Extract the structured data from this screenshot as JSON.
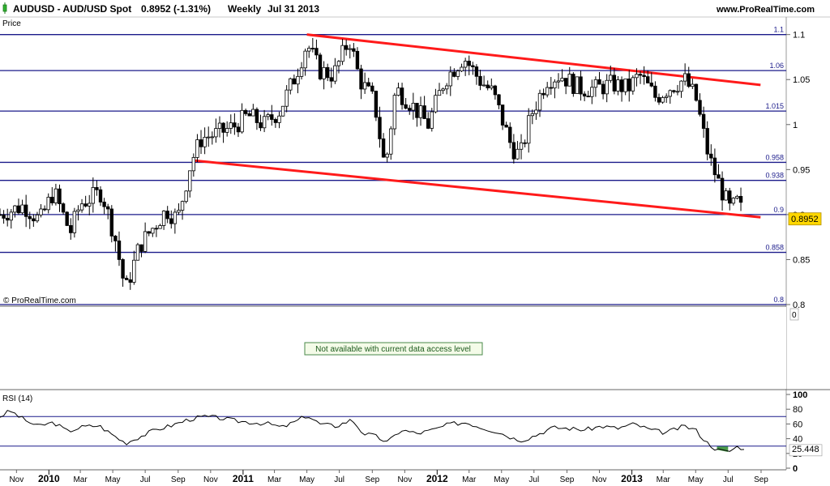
{
  "header": {
    "symbol": "AUDUSD - AUD/USD Spot",
    "quote": "0.8952 (-1.31%)",
    "period": "Weekly",
    "date": "Jul 31 2013",
    "site": "www.ProRealTime.com",
    "price_label": "Price",
    "watermark": "© ProRealTime.com"
  },
  "middle_panel": {
    "notice": "Not available with current data access level",
    "scale_value": "0"
  },
  "rsi_panel": {
    "label": "RSI (14)",
    "last_value_label": "25.448"
  },
  "current_price_label": "0.8952",
  "colors": {
    "level_line": "#1a1a8a",
    "trendline": "#ff1a1a",
    "candle": "#000000",
    "price_tag": "#ffd700",
    "rsi_overbought_fill": "#d98080",
    "rsi_oversold_fill": "#4a9a4a",
    "notice_border": "#4a8a4a",
    "notice_bg": "#f4fbe8"
  },
  "chart_data": {
    "type": "candlestick",
    "title": "AUDUSD - AUD/USD Spot",
    "timeframe": "Weekly",
    "ylim": [
      0.8,
      1.115
    ],
    "ticks": [
      {
        "label": "1.1",
        "value": 1.1
      },
      {
        "label": "1.05",
        "value": 1.05
      },
      {
        "label": "1",
        "value": 1.0
      },
      {
        "label": "0.95",
        "value": 0.95
      },
      {
        "label": "0.9",
        "value": 0.9
      },
      {
        "label": "0.85",
        "value": 0.85
      },
      {
        "label": "0.8",
        "value": 0.8
      }
    ],
    "levels": [
      {
        "label": "1.1",
        "value": 1.1
      },
      {
        "label": "1.06",
        "value": 1.06
      },
      {
        "label": "1.015",
        "value": 1.015
      },
      {
        "label": "0.958",
        "value": 0.958
      },
      {
        "label": "0.938",
        "value": 0.938
      },
      {
        "label": "0.9",
        "value": 0.9
      },
      {
        "label": "0.858",
        "value": 0.858
      },
      {
        "label": "0.8",
        "value": 0.8
      }
    ],
    "trendlines": [
      {
        "from": [
          "2011-05-01",
          1.1
        ],
        "to": [
          "2013-08-31",
          1.044
        ]
      },
      {
        "from": [
          "2010-10-01",
          0.96
        ],
        "to": [
          "2013-08-31",
          0.897
        ]
      }
    ],
    "current_price": 0.8952,
    "x_axis": {
      "start": "2009-10-01",
      "end": "2013-09-30",
      "months": [
        {
          "label": "Nov",
          "date": "2009-11-01"
        },
        {
          "label": "Mar",
          "date": "2010-03-01"
        },
        {
          "label": "May",
          "date": "2010-05-01"
        },
        {
          "label": "Jul",
          "date": "2010-07-01"
        },
        {
          "label": "Sep",
          "date": "2010-09-01"
        },
        {
          "label": "Nov",
          "date": "2010-11-01"
        },
        {
          "label": "Mar",
          "date": "2011-03-01"
        },
        {
          "label": "May",
          "date": "2011-05-01"
        },
        {
          "label": "Jul",
          "date": "2011-07-01"
        },
        {
          "label": "Sep",
          "date": "2011-09-01"
        },
        {
          "label": "Nov",
          "date": "2011-11-01"
        },
        {
          "label": "Mar",
          "date": "2012-03-01"
        },
        {
          "label": "May",
          "date": "2012-05-01"
        },
        {
          "label": "Jul",
          "date": "2012-07-01"
        },
        {
          "label": "Sep",
          "date": "2012-09-01"
        },
        {
          "label": "Nov",
          "date": "2012-11-01"
        },
        {
          "label": "Mar",
          "date": "2013-03-01"
        },
        {
          "label": "May",
          "date": "2013-05-01"
        },
        {
          "label": "Jul",
          "date": "2013-07-01"
        },
        {
          "label": "Sep",
          "date": "2013-09-01"
        }
      ],
      "years": [
        {
          "label": "2010",
          "date": "2010-01-01"
        },
        {
          "label": "2011",
          "date": "2011-01-01"
        },
        {
          "label": "2012",
          "date": "2012-01-01"
        },
        {
          "label": "2013",
          "date": "2013-01-01"
        }
      ]
    },
    "close_path": [
      [
        "2009-10-01",
        0.9
      ],
      [
        "2009-11-15",
        0.91
      ],
      [
        "2009-12-15",
        0.893
      ],
      [
        "2010-01-10",
        0.926
      ],
      [
        "2010-02-10",
        0.88
      ],
      [
        "2010-03-01",
        0.912
      ],
      [
        "2010-04-10",
        0.925
      ],
      [
        "2010-05-05",
        0.875
      ],
      [
        "2010-05-25",
        0.815
      ],
      [
        "2010-06-20",
        0.865
      ],
      [
        "2010-07-15",
        0.885
      ],
      [
        "2010-08-10",
        0.905
      ],
      [
        "2010-08-31",
        0.895
      ],
      [
        "2010-09-25",
        0.958
      ],
      [
        "2010-10-15",
        0.985
      ],
      [
        "2010-11-15",
        0.99
      ],
      [
        "2010-12-15",
        0.998
      ],
      [
        "2011-01-10",
        1.01
      ],
      [
        "2011-02-10",
        1.0
      ],
      [
        "2011-03-10",
        1.015
      ],
      [
        "2011-04-10",
        1.055
      ],
      [
        "2011-05-01",
        1.09
      ],
      [
        "2011-05-25",
        1.06
      ],
      [
        "2011-06-20",
        1.055
      ],
      [
        "2011-07-20",
        1.095
      ],
      [
        "2011-08-08",
        1.05
      ],
      [
        "2011-09-05",
        1.025
      ],
      [
        "2011-09-25",
        0.95
      ],
      [
        "2011-10-15",
        1.04
      ],
      [
        "2011-11-10",
        1.025
      ],
      [
        "2011-12-15",
        1.0
      ],
      [
        "2012-01-15",
        1.05
      ],
      [
        "2012-02-20",
        1.075
      ],
      [
        "2012-03-20",
        1.05
      ],
      [
        "2012-04-15",
        1.035
      ],
      [
        "2012-05-20",
        0.975
      ],
      [
        "2012-06-05",
        0.965
      ],
      [
        "2012-06-25",
        1.01
      ],
      [
        "2012-07-25",
        1.05
      ],
      [
        "2012-08-20",
        1.055
      ],
      [
        "2012-09-25",
        1.04
      ],
      [
        "2012-10-25",
        1.04
      ],
      [
        "2012-11-25",
        1.045
      ],
      [
        "2012-12-25",
        1.04
      ],
      [
        "2013-01-15",
        1.055
      ],
      [
        "2013-02-15",
        1.03
      ],
      [
        "2013-03-10",
        1.04
      ],
      [
        "2013-04-10",
        1.05
      ],
      [
        "2013-05-01",
        1.03
      ],
      [
        "2013-05-25",
        0.965
      ],
      [
        "2013-06-20",
        0.925
      ],
      [
        "2013-07-05",
        0.905
      ],
      [
        "2013-07-20",
        0.915
      ],
      [
        "2013-07-31",
        0.8952
      ]
    ],
    "rsi": {
      "name": "RSI (14)",
      "ylim": [
        0,
        100
      ],
      "ticks": [
        {
          "label": "100",
          "value": 100
        },
        {
          "label": "80",
          "value": 80
        },
        {
          "label": "60",
          "value": 60
        },
        {
          "label": "40",
          "value": 40
        },
        {
          "label": "20",
          "value": 20
        },
        {
          "label": "0",
          "value": 0
        }
      ],
      "overbought": 70,
      "oversold": 30,
      "last": 25.448,
      "path": [
        [
          "2009-10-01",
          70
        ],
        [
          "2009-10-20",
          78
        ],
        [
          "2009-11-15",
          66
        ],
        [
          "2009-12-10",
          57
        ],
        [
          "2010-01-10",
          62
        ],
        [
          "2010-02-05",
          50
        ],
        [
          "2010-03-05",
          56
        ],
        [
          "2010-04-05",
          58
        ],
        [
          "2010-04-25",
          48
        ],
        [
          "2010-05-25",
          34
        ],
        [
          "2010-06-25",
          44
        ],
        [
          "2010-07-20",
          52
        ],
        [
          "2010-08-20",
          58
        ],
        [
          "2010-09-20",
          66
        ],
        [
          "2010-10-20",
          70
        ],
        [
          "2010-11-20",
          68
        ],
        [
          "2010-12-20",
          64
        ],
        [
          "2011-01-20",
          62
        ],
        [
          "2011-02-20",
          60
        ],
        [
          "2011-03-15",
          55
        ],
        [
          "2011-04-15",
          65
        ],
        [
          "2011-05-01",
          72
        ],
        [
          "2011-05-25",
          60
        ],
        [
          "2011-06-25",
          57
        ],
        [
          "2011-07-25",
          66
        ],
        [
          "2011-08-15",
          47
        ],
        [
          "2011-09-05",
          44
        ],
        [
          "2011-09-30",
          35
        ],
        [
          "2011-10-25",
          52
        ],
        [
          "2011-11-25",
          47
        ],
        [
          "2011-12-25",
          52
        ],
        [
          "2012-01-25",
          60
        ],
        [
          "2012-02-25",
          62
        ],
        [
          "2012-03-25",
          55
        ],
        [
          "2012-04-25",
          49
        ],
        [
          "2012-05-25",
          40
        ],
        [
          "2012-06-10",
          38
        ],
        [
          "2012-07-05",
          45
        ],
        [
          "2012-08-05",
          55
        ],
        [
          "2012-09-05",
          54
        ],
        [
          "2012-10-05",
          52
        ],
        [
          "2012-11-05",
          57
        ],
        [
          "2012-12-05",
          54
        ],
        [
          "2013-01-05",
          60
        ],
        [
          "2013-02-05",
          52
        ],
        [
          "2013-03-05",
          48
        ],
        [
          "2013-04-10",
          57
        ],
        [
          "2013-05-01",
          52
        ],
        [
          "2013-05-20",
          36
        ],
        [
          "2013-06-10",
          25
        ],
        [
          "2013-07-01",
          22
        ],
        [
          "2013-07-20",
          30
        ],
        [
          "2013-07-31",
          25.448
        ]
      ]
    }
  }
}
